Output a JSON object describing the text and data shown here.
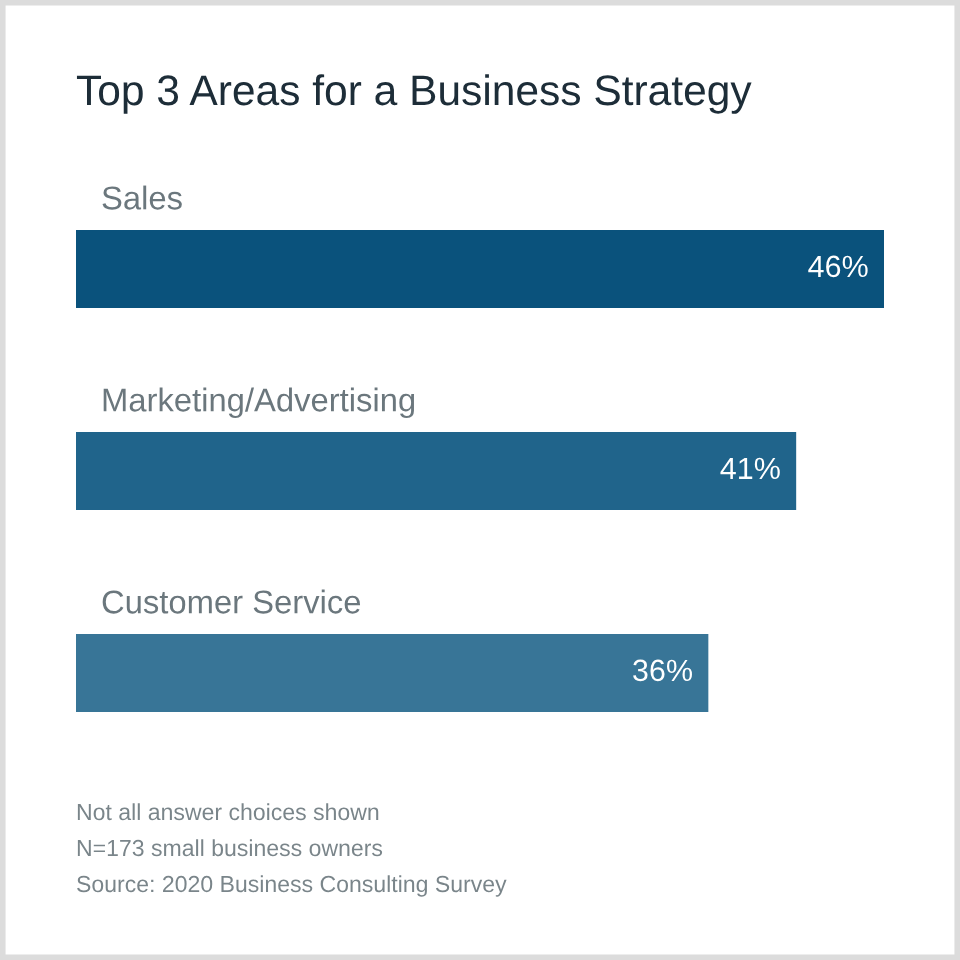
{
  "chart_data": {
    "type": "bar",
    "orientation": "horizontal",
    "title": "Top 3 Areas for a Business Strategy",
    "categories": [
      "Sales",
      "Marketing/Advertising",
      "Customer Service"
    ],
    "values": [
      46,
      41,
      36
    ],
    "colors": [
      "#0a527c",
      "#20648b",
      "#387597"
    ],
    "value_labels": [
      "46%",
      "41%",
      "36%"
    ],
    "annotations": [
      "Not all answer choices shown",
      "N=173 small business owners",
      "Source: 2020 Business Consulting Survey"
    ]
  }
}
